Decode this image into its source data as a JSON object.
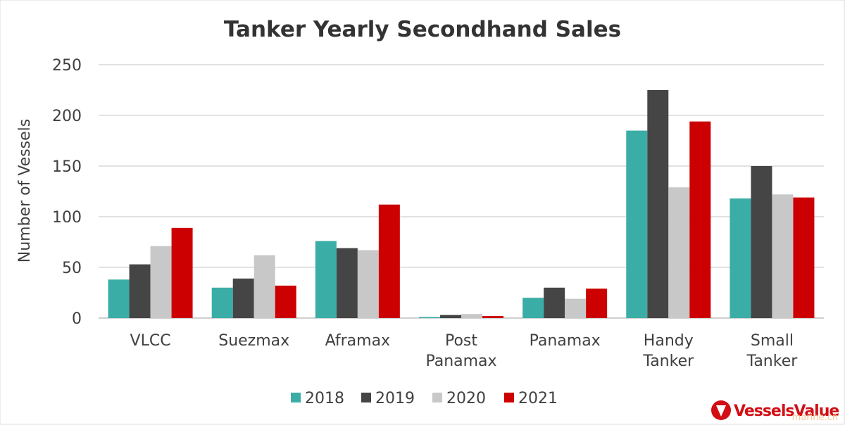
{
  "chart_data": {
    "type": "bar",
    "title": "Tanker Yearly Secondhand Sales",
    "ylabel": "Number of Vessels",
    "xlabel": "",
    "ylim": [
      0,
      250
    ],
    "yticks": [
      0,
      50,
      100,
      150,
      200,
      250
    ],
    "grid": true,
    "legend": "bottom",
    "categories": [
      [
        "VLCC"
      ],
      [
        "Suezmax"
      ],
      [
        "Aframax"
      ],
      [
        "Post",
        "Panamax"
      ],
      [
        "Panamax"
      ],
      [
        "Handy",
        "Tanker"
      ],
      [
        "Small",
        "Tanker"
      ]
    ],
    "series": [
      {
        "name": "2018",
        "color": "#3aada6",
        "values": [
          38,
          30,
          76,
          1,
          20,
          185,
          118
        ]
      },
      {
        "name": "2019",
        "color": "#454545",
        "values": [
          53,
          39,
          69,
          3,
          30,
          225,
          150
        ]
      },
      {
        "name": "2020",
        "color": "#c8c8c8",
        "values": [
          71,
          62,
          67,
          4,
          19,
          129,
          122
        ]
      },
      {
        "name": "2021",
        "color": "#cc0000",
        "values": [
          89,
          32,
          112,
          2,
          29,
          194,
          119
        ]
      }
    ]
  },
  "logo": {
    "text": "VesselsValue",
    "icon": "vesselsvalue-logo-icon",
    "color": "#d10e14"
  },
  "watermark": {
    "text": "marine.cn"
  }
}
